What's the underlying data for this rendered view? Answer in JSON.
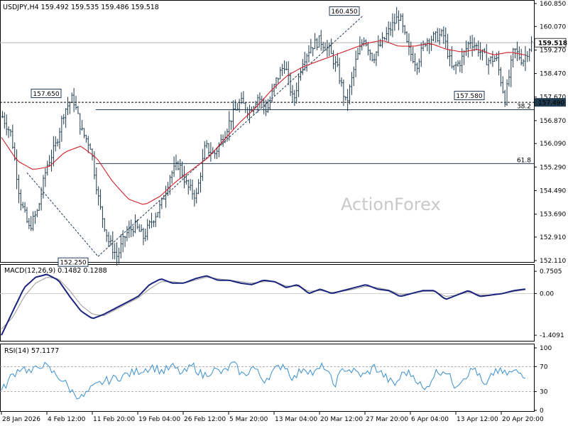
{
  "chart_data": [
    {
      "type": "ohlc",
      "title": "USDJPY,H4  159.492 159.535 159.486 159.518",
      "watermark": "ActionForex",
      "ylim": [
        152.11,
        160.85
      ],
      "y_ticks": [
        "160.850",
        "160.070",
        "159.270",
        "158.470",
        "157.670",
        "156.870",
        "156.090",
        "155.290",
        "154.490",
        "153.690",
        "152.910",
        "152.110"
      ],
      "x_ticks": [
        "28 Jan 2026",
        "4 Feb 12:00",
        "11 Feb 20:00",
        "19 Feb 04:00",
        "26 Feb 12:00",
        "5 Mar 20:00",
        "13 Mar 04:00",
        "20 Mar 12:00",
        "27 Mar 20:00",
        "6 Apr 04:00",
        "13 Apr 12:00",
        "20 Apr 20:00"
      ],
      "current_price": "159.518",
      "current_price_value": 159.518,
      "level_label": "157.490",
      "level_value": 157.49,
      "annotations": [
        {
          "label": "157.650",
          "value": 157.65
        },
        {
          "label": "152.250",
          "value": 152.25
        },
        {
          "label": "160.450",
          "value": 160.45
        },
        {
          "label": "157.580",
          "value": 157.58
        }
      ],
      "fib_levels": [
        {
          "label": "38.2",
          "value": 157.24
        },
        {
          "label": "61.8",
          "value": 155.41
        }
      ],
      "close_path": [
        157.0,
        156.4,
        154.2,
        153.2,
        153.8,
        155.3,
        156.0,
        157.2,
        157.65,
        156.5,
        156.0,
        154.0,
        152.8,
        152.25,
        153.0,
        153.3,
        152.9,
        153.5,
        154.0,
        155.0,
        155.4,
        154.6,
        154.3,
        156.0,
        155.7,
        156.3,
        157.0,
        157.5,
        157.2,
        157.7,
        157.2,
        158.2,
        158.8,
        157.5,
        158.9,
        159.4,
        159.6,
        159.3,
        158.6,
        157.4,
        158.8,
        159.7,
        159.0,
        159.5,
        160.0,
        160.45,
        159.3,
        158.8,
        159.6,
        159.7,
        159.8,
        158.6,
        158.9,
        159.6,
        159.3,
        158.9,
        159.0,
        157.58,
        159.3,
        158.9,
        159.5
      ],
      "ma_path": [
        156.3,
        155.5,
        155.2,
        155.3,
        155.8,
        156.0,
        155.6,
        154.8,
        154.2,
        154.0,
        154.3,
        154.8,
        155.2,
        155.6,
        156.2,
        156.8,
        157.3,
        157.9,
        158.4,
        158.7,
        158.9,
        159.1,
        159.3,
        159.5,
        159.6,
        159.4,
        159.4,
        159.5,
        159.3,
        159.2,
        159.3,
        159.1,
        159.2,
        159.1
      ],
      "macd": {
        "title": "MACD(12,26,9) 0.1482 0.1288",
        "ylim": [
          -1.55,
          0.85
        ],
        "y_ticks": [
          "0.7505",
          "0.00",
          "-1.4091"
        ],
        "values": [
          -1.41,
          -0.6,
          0.2,
          0.55,
          0.65,
          0.45,
          -0.1,
          -0.6,
          -0.85,
          -0.7,
          -0.5,
          -0.3,
          -0.1,
          0.3,
          0.5,
          0.35,
          0.35,
          0.5,
          0.6,
          0.45,
          0.45,
          0.35,
          0.3,
          0.45,
          0.4,
          0.2,
          0.3,
          0.0,
          0.15,
          0.0,
          0.1,
          0.2,
          0.3,
          0.15,
          0.1,
          -0.1,
          0.0,
          0.1,
          0.1,
          -0.2,
          -0.05,
          0.1,
          -0.1,
          -0.05,
          0.0,
          0.1,
          0.15
        ],
        "signal": [
          -1.2,
          -0.8,
          -0.1,
          0.35,
          0.55,
          0.5,
          0.1,
          -0.4,
          -0.7,
          -0.75,
          -0.55,
          -0.35,
          -0.15,
          0.15,
          0.4,
          0.4,
          0.35,
          0.45,
          0.55,
          0.5,
          0.45,
          0.4,
          0.35,
          0.4,
          0.4,
          0.25,
          0.25,
          0.08,
          0.1,
          0.03,
          0.08,
          0.15,
          0.25,
          0.2,
          0.12,
          -0.03,
          0.0,
          0.07,
          0.08,
          -0.1,
          -0.05,
          0.05,
          -0.05,
          -0.05,
          0.0,
          0.07,
          0.13
        ]
      },
      "rsi": {
        "title": "RSI(14) 57.1177",
        "ylim": [
          0,
          100
        ],
        "y_ticks": [
          "100",
          "70",
          "30",
          "0"
        ],
        "values": [
          30,
          55,
          70,
          60,
          75,
          62,
          50,
          30,
          20,
          35,
          45,
          50,
          55,
          60,
          65,
          70,
          62,
          70,
          58,
          72,
          55,
          65,
          60,
          75,
          55,
          70,
          48,
          62,
          75,
          50,
          70,
          58,
          72,
          40,
          68,
          62,
          55,
          70,
          55,
          40,
          62,
          55,
          30,
          60,
          65,
          40,
          55,
          68,
          35,
          65,
          58,
          62,
          57
        ]
      }
    }
  ]
}
